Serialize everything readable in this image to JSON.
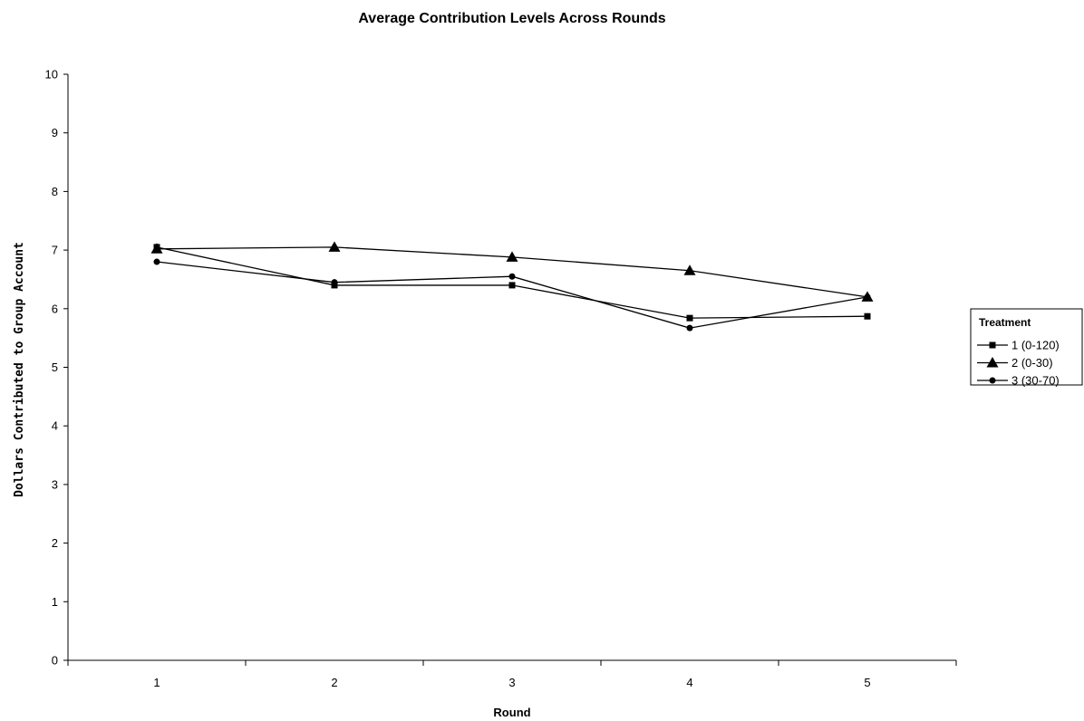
{
  "chart_data": {
    "type": "line",
    "title": "Average Contribution Levels Across Rounds",
    "xlabel": "Round",
    "ylabel": "Dollars Contributed to Group Account",
    "categories": [
      "1",
      "2",
      "3",
      "4",
      "5"
    ],
    "ylim": [
      0,
      10
    ],
    "yticks": [
      0,
      1,
      2,
      3,
      4,
      5,
      6,
      7,
      8,
      9,
      10
    ],
    "grid": false,
    "legend": {
      "title": "Treatment",
      "position": "right"
    },
    "series": [
      {
        "name": "1 (0-120)",
        "marker": "square",
        "values": [
          7.05,
          6.4,
          6.4,
          5.84,
          5.87
        ]
      },
      {
        "name": "2 (0-30)",
        "marker": "triangle",
        "values": [
          7.02,
          7.05,
          6.88,
          6.65,
          6.2
        ]
      },
      {
        "name": "3 (30-70)",
        "marker": "circle",
        "values": [
          6.8,
          6.45,
          6.55,
          5.67,
          6.2
        ]
      }
    ]
  }
}
